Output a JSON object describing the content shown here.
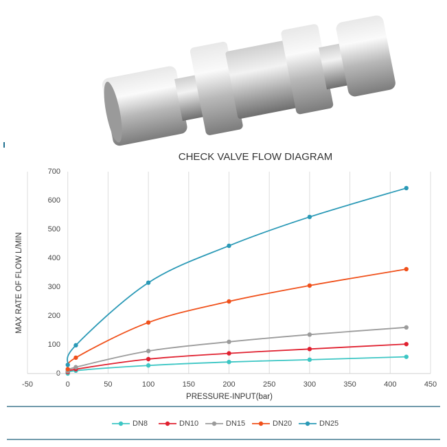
{
  "chart_data": {
    "type": "line",
    "title": "CHECK VALVE FLOW DIAGRAM",
    "x_label": "PRESSURE-INPUT(bar)",
    "y_label": "MAX RATE OF FLOW  L/MIN",
    "x": [
      0,
      10,
      100,
      200,
      300,
      420
    ],
    "series": [
      {
        "name": "DN8",
        "color": "#3cc6c4",
        "values": [
          0,
          10,
          28,
          40,
          48,
          58
        ]
      },
      {
        "name": "DN10",
        "color": "#e0202f",
        "values": [
          5,
          15,
          50,
          70,
          85,
          102
        ]
      },
      {
        "name": "DN15",
        "color": "#9b9b9b",
        "values": [
          8,
          22,
          78,
          110,
          135,
          160
        ]
      },
      {
        "name": "DN20",
        "color": "#f0501a",
        "values": [
          15,
          55,
          177,
          250,
          305,
          362
        ]
      },
      {
        "name": "DN25",
        "color": "#2a99b6",
        "values": [
          30,
          98,
          315,
          443,
          543,
          643
        ]
      }
    ],
    "xlim": [
      -50,
      450
    ],
    "xticks": [
      -50,
      0,
      50,
      100,
      150,
      200,
      250,
      300,
      350,
      400,
      450
    ],
    "ylim": [
      0,
      700
    ],
    "yticks": [
      0,
      100,
      200,
      300,
      400,
      500,
      600,
      700
    ],
    "grid": "x",
    "legend": "bottom"
  }
}
